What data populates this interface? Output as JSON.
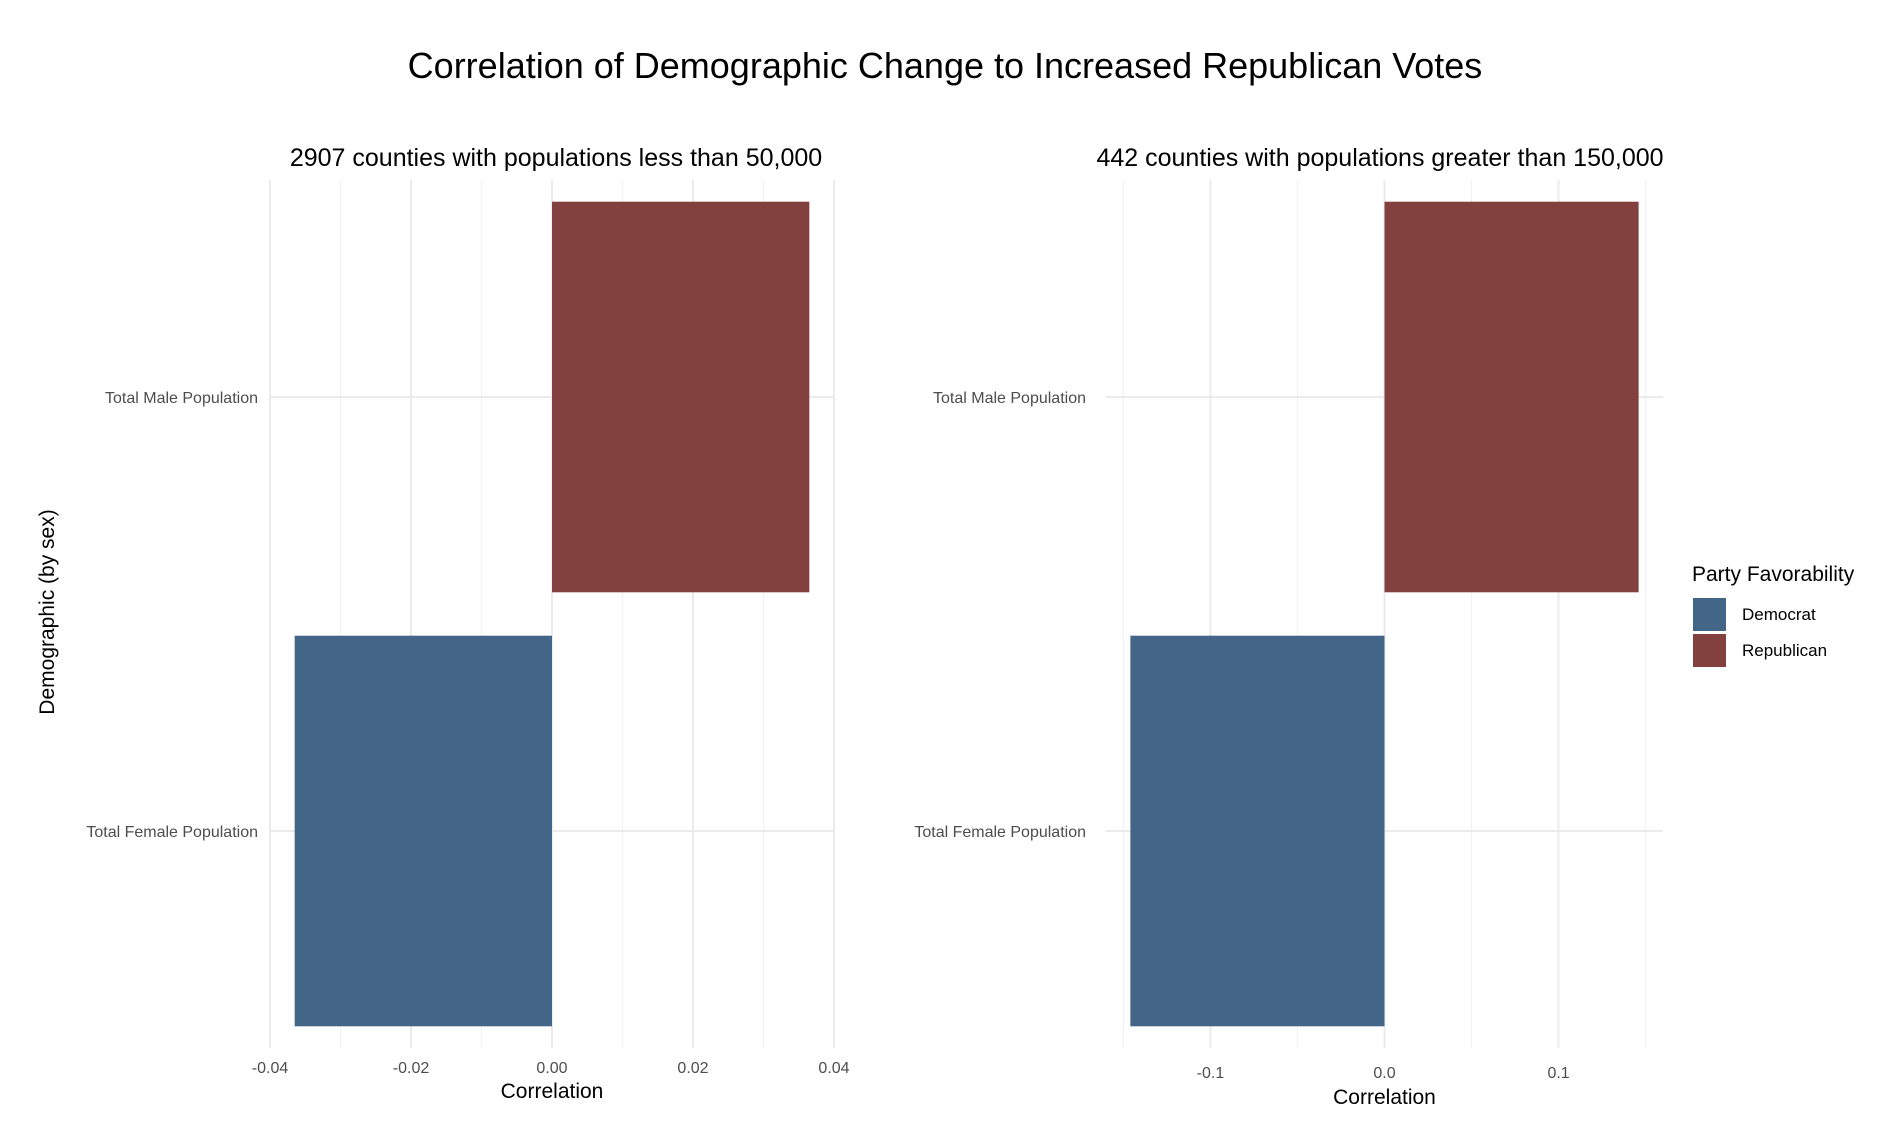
{
  "chart_data": {
    "type": "bar",
    "orientation": "horizontal",
    "title": "Correlation of Demographic Change to Increased Republican Votes",
    "ylabel": "Demographic (by sex)",
    "legend": {
      "title": "Party Favorability",
      "placement": "right",
      "entries": [
        {
          "label": "Democrat",
          "color": "#436588"
        },
        {
          "label": "Republican",
          "color": "#82413f"
        }
      ]
    },
    "grid": true,
    "panels": [
      {
        "subtitle": "2907 counties with populations less than 50,000",
        "xlabel": "Correlation",
        "xlim": [
          -0.04,
          0.04
        ],
        "xticks": [
          -0.04,
          -0.02,
          0.0,
          0.02,
          0.04
        ],
        "xtick_labels": [
          "-0.04",
          "-0.02",
          "0.00",
          "0.02",
          "0.04"
        ],
        "categories": [
          "Total Male Population",
          "Total Female Population"
        ],
        "bars": [
          {
            "category": "Total Male Population",
            "value": 0.0365,
            "party": "Republican"
          },
          {
            "category": "Total Female Population",
            "value": -0.0365,
            "party": "Democrat"
          }
        ]
      },
      {
        "subtitle": "442 counties with populations greater than 150,000",
        "xlabel": "Correlation",
        "xlim": [
          -0.16,
          0.16
        ],
        "xticks": [
          -0.1,
          0.0,
          0.1
        ],
        "xtick_labels": [
          "-0.1",
          "0.0",
          "0.1"
        ],
        "categories": [
          "Total Male Population",
          "Total Female Population"
        ],
        "bars": [
          {
            "category": "Total Male Population",
            "value": 0.146,
            "party": "Republican"
          },
          {
            "category": "Total Female Population",
            "value": -0.146,
            "party": "Democrat"
          }
        ]
      }
    ]
  }
}
